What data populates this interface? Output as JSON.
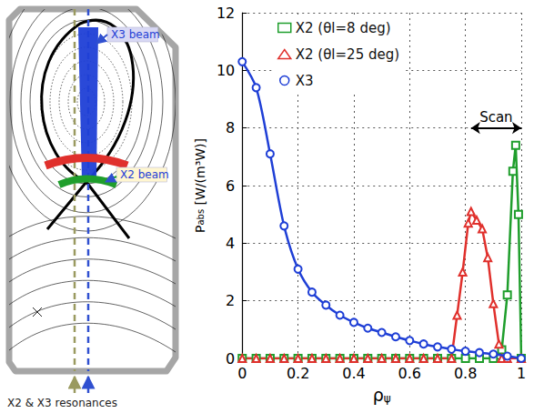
{
  "diagram": {
    "labels": {
      "x3_beam": "X3 beam",
      "x2_beam": "X2 beam",
      "resonances": "X2 & X3 resonances"
    }
  },
  "chart_data": {
    "type": "line",
    "xlabel": {
      "text": "ρ",
      "sub": "ψ"
    },
    "ylabel": {
      "text": "P",
      "sub": "abs",
      "unit": "[W/(m³W)]"
    },
    "xlim": [
      0,
      1
    ],
    "xticks": [
      0,
      0.2,
      0.4,
      0.6,
      0.8,
      1
    ],
    "ylim": [
      0,
      12
    ],
    "yticks": [
      0,
      2,
      4,
      6,
      8,
      10,
      12
    ],
    "grid": true,
    "legend": "upper left",
    "series": [
      {
        "name": "X2 (θl=8 deg)",
        "color": "#1f9e2c",
        "marker": "square",
        "x": [
          0,
          0.05,
          0.1,
          0.15,
          0.2,
          0.25,
          0.3,
          0.35,
          0.4,
          0.45,
          0.5,
          0.55,
          0.6,
          0.65,
          0.7,
          0.75,
          0.8,
          0.85,
          0.9,
          0.93,
          0.95,
          0.97,
          0.98,
          0.99,
          1
        ],
        "values": [
          0,
          0,
          0,
          0,
          0,
          0,
          0,
          0,
          0,
          0,
          0,
          0,
          0,
          0,
          0,
          0,
          0,
          0,
          0,
          0.3,
          2.2,
          6.5,
          7.4,
          5.0,
          0
        ]
      },
      {
        "name": "X2 (θl=25 deg)",
        "color": "#e0302c",
        "marker": "triangle",
        "x": [
          0,
          0.05,
          0.1,
          0.15,
          0.2,
          0.25,
          0.3,
          0.35,
          0.4,
          0.45,
          0.5,
          0.55,
          0.6,
          0.65,
          0.7,
          0.75,
          0.77,
          0.79,
          0.81,
          0.82,
          0.84,
          0.86,
          0.88,
          0.9,
          0.92,
          0.93,
          0.95,
          1
        ],
        "values": [
          0,
          0,
          0,
          0,
          0,
          0,
          0,
          0,
          0,
          0,
          0,
          0,
          0,
          0,
          0,
          0,
          1.5,
          3.0,
          4.7,
          5.1,
          4.8,
          4.5,
          3.5,
          1.9,
          0.5,
          0,
          0,
          0
        ]
      },
      {
        "name": "X3",
        "color": "#1f3fd6",
        "marker": "circle",
        "x": [
          0,
          0.05,
          0.1,
          0.15,
          0.2,
          0.25,
          0.3,
          0.35,
          0.4,
          0.45,
          0.5,
          0.55,
          0.6,
          0.65,
          0.7,
          0.75,
          0.8,
          0.85,
          0.9,
          0.95,
          1
        ],
        "values": [
          10.3,
          9.4,
          7.1,
          4.6,
          3.1,
          2.3,
          1.85,
          1.5,
          1.25,
          1.05,
          0.9,
          0.75,
          0.62,
          0.5,
          0.4,
          0.32,
          0.25,
          0.2,
          0.15,
          0.08,
          0
        ]
      }
    ],
    "annotations": [
      {
        "text": "Scan",
        "from": [
          0.82,
          8
        ],
        "to": [
          1,
          8
        ]
      }
    ]
  }
}
